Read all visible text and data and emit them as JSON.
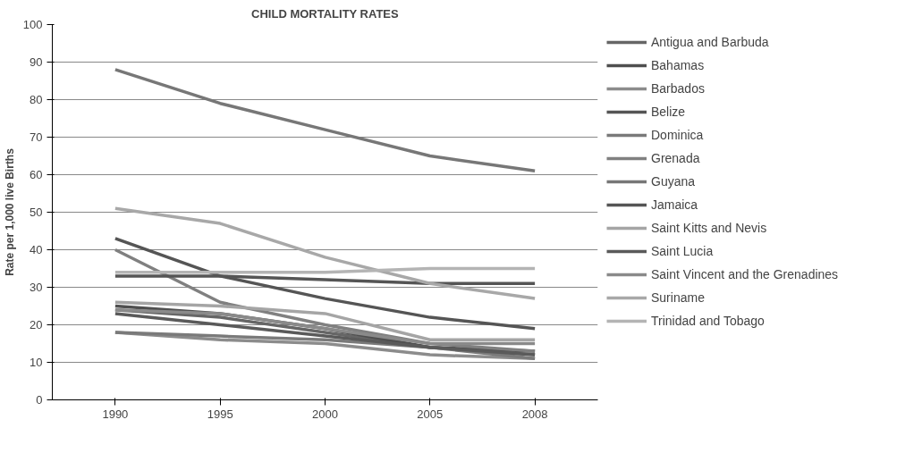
{
  "chart_data": {
    "type": "line",
    "title": "CHILD MORTALITY RATES",
    "ylabel": "Rate per 1,000 live Births",
    "categories": [
      "1990",
      "1995",
      "2000",
      "2005",
      "2008"
    ],
    "ylim": [
      0,
      100
    ],
    "yticks": [
      0,
      10,
      20,
      30,
      40,
      50,
      60,
      70,
      80,
      90,
      100
    ],
    "grid": "y",
    "legend": "right",
    "marker": "none",
    "line_style": "solid",
    "series": [
      {
        "name": "Antigua and Barbuda",
        "color": "#666666",
        "values": [
          24,
          22,
          18,
          14,
          12
        ]
      },
      {
        "name": "Bahamas",
        "color": "#4f4f4f",
        "values": [
          25,
          23,
          19,
          14,
          13
        ]
      },
      {
        "name": "Barbados",
        "color": "#8c8c8c",
        "values": [
          18,
          16,
          15,
          12,
          11
        ]
      },
      {
        "name": "Belize",
        "color": "#555555",
        "values": [
          43,
          33,
          27,
          22,
          19
        ]
      },
      {
        "name": "Dominica",
        "color": "#7a7a7a",
        "values": [
          18,
          17,
          16,
          14,
          11
        ]
      },
      {
        "name": "Grenada",
        "color": "#808080",
        "values": [
          40,
          26,
          20,
          15,
          13
        ]
      },
      {
        "name": "Guyana",
        "color": "#777777",
        "values": [
          88,
          79,
          72,
          65,
          61
        ]
      },
      {
        "name": "Jamaica",
        "color": "#555555",
        "values": [
          33,
          33,
          32,
          31,
          31
        ]
      },
      {
        "name": "Saint Kitts and Nevis",
        "color": "#a5a5a5",
        "values": [
          26,
          25,
          23,
          16,
          16
        ]
      },
      {
        "name": "Saint Lucia",
        "color": "#5a5a5a",
        "values": [
          23,
          20,
          17,
          14,
          12
        ]
      },
      {
        "name": "Saint Vincent and the Grenadines",
        "color": "#8a8a8a",
        "values": [
          24,
          23,
          19,
          15,
          15
        ]
      },
      {
        "name": "Suriname",
        "color": "#a8a8a8",
        "values": [
          51,
          47,
          38,
          31,
          27
        ]
      },
      {
        "name": "Trinidad and Tobago",
        "color": "#b4b4b4",
        "values": [
          34,
          34,
          34,
          35,
          35
        ]
      }
    ]
  }
}
